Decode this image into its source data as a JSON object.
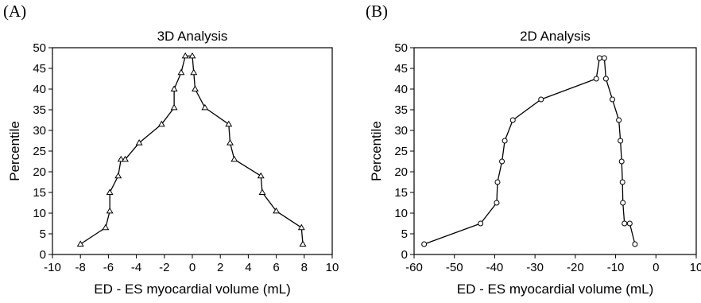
{
  "panels": [
    {
      "letter": "(A)"
    },
    {
      "letter": "(B)"
    }
  ],
  "chart_data": [
    {
      "type": "line",
      "title": "3D Analysis",
      "xlabel": "ED - ES myocardial volume (mL)",
      "ylabel": "Percentile",
      "xlim": [
        -10,
        10
      ],
      "ylim": [
        0,
        50
      ],
      "xticks": [
        -10,
        -8,
        -6,
        -4,
        -2,
        0,
        2,
        4,
        6,
        8,
        10
      ],
      "yticks": [
        0,
        5,
        10,
        15,
        20,
        25,
        30,
        35,
        40,
        45,
        50
      ],
      "marker": "triangle",
      "grid": false,
      "series": [
        {
          "x": [
            -8.0,
            -6.2,
            -5.9,
            -5.9,
            -5.3,
            -5.1,
            -4.8,
            -3.8,
            -2.2,
            -1.3,
            -1.3,
            -0.8,
            -0.5,
            0.0,
            0.1,
            0.2,
            0.9,
            2.6,
            2.7,
            3.0,
            4.9,
            5.0,
            6.0,
            7.8,
            7.9
          ],
          "y": [
            2.5,
            6.5,
            10.5,
            15.0,
            19.0,
            23.0,
            23.0,
            27.0,
            31.5,
            35.5,
            40.0,
            44.0,
            48.0,
            48.0,
            44.0,
            40.0,
            35.5,
            31.5,
            27.0,
            23.0,
            19.0,
            15.0,
            10.5,
            6.5,
            2.5
          ]
        }
      ]
    },
    {
      "type": "line",
      "title": "2D Analysis",
      "xlabel": "ED - ES myocardial volume (mL)",
      "ylabel": "Percentile",
      "xlim": [
        -60,
        10
      ],
      "ylim": [
        0,
        50
      ],
      "xticks": [
        -60,
        -50,
        -40,
        -30,
        -20,
        -10,
        0,
        10
      ],
      "yticks": [
        0,
        5,
        10,
        15,
        20,
        25,
        30,
        35,
        40,
        45,
        50
      ],
      "marker": "circle",
      "grid": false,
      "series": [
        {
          "x": [
            -57.5,
            -43.5,
            -39.5,
            -39.3,
            -38.2,
            -37.5,
            -35.5,
            -28.5,
            -14.8,
            -14.0,
            -12.8,
            -12.4,
            -10.8,
            -9.2,
            -8.8,
            -8.5,
            -8.3,
            -8.2,
            -7.8,
            -6.5,
            -5.2
          ],
          "y": [
            2.5,
            7.5,
            12.5,
            17.5,
            22.5,
            27.5,
            32.5,
            37.5,
            42.5,
            47.5,
            47.5,
            42.5,
            37.5,
            32.5,
            27.5,
            22.5,
            17.5,
            12.5,
            7.5,
            7.5,
            2.5
          ]
        }
      ]
    }
  ]
}
